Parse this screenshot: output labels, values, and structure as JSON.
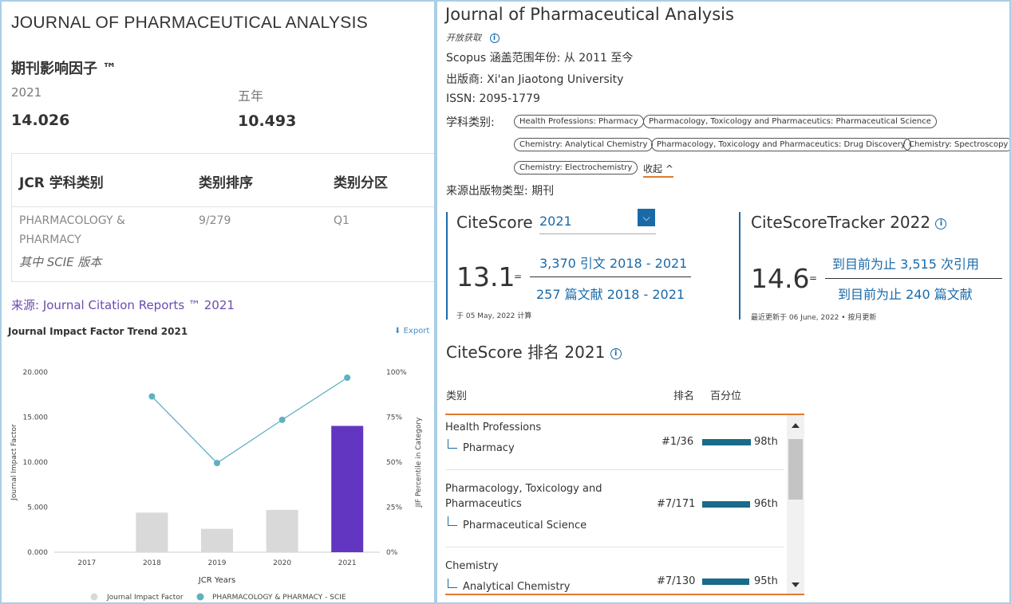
{
  "left": {
    "journal_title": "JOURNAL OF PHARMACEUTICAL ANALYSIS",
    "jif_heading": "期刊影响因子 ™",
    "jif_year_label": "2021",
    "jif_value": "14.026",
    "five_year_label": "五年",
    "five_year_value": "10.493",
    "jcr_table": {
      "headers": [
        "JCR 学科类别",
        "类别排序",
        "类别分区"
      ],
      "category_line1": "PHARMACOLOGY &",
      "category_line2": "PHARMACY",
      "edition": "其中 SCIE 版本",
      "rank": "9/279",
      "quartile": "Q1"
    },
    "source_prefix": "来源: ",
    "source_link": "Journal Citation Reports ™ 2021",
    "trend_title": "Journal Impact Factor Trend 2021",
    "export_label": "Export"
  },
  "chart_data": {
    "type": "bar",
    "title": "Journal Impact Factor Trend 2021",
    "categories": [
      "2017",
      "2018",
      "2019",
      "2020",
      "2021"
    ],
    "xlabel": "JCR Years",
    "ylabel": "Journal Impact Factor",
    "y2label": "JIF Percentile in Category",
    "ylim": [
      0,
      20
    ],
    "y_ticks": [
      "0.000",
      "5.000",
      "10.000",
      "15.000",
      "20.000"
    ],
    "y2_ticks": [
      "0%",
      "25%",
      "50%",
      "75%",
      "100%"
    ],
    "series": [
      {
        "name": "Journal Impact Factor",
        "kind": "bar",
        "values": [
          null,
          4.4,
          2.6,
          4.7,
          14.026
        ],
        "color": "#d9d9d9",
        "highlight_color": "#6236c0"
      },
      {
        "name": "PHARMACOLOGY & PHARMACY - SCIE",
        "kind": "line",
        "axis": "right",
        "values": [
          null,
          86.5,
          49.5,
          73.5,
          96.9
        ],
        "color": "#5fb1c0"
      }
    ],
    "legend": "bottom"
  },
  "right": {
    "title": "Journal of Pharmaceutical Analysis",
    "open_access": "开放获取",
    "scopus_coverage": "Scopus 涵盖范围年份:  从 2011 至今",
    "publisher": "出版商:  Xi'an Jiaotong University",
    "issn": "ISSN:  2095-1779",
    "subject_label": "学科类别:",
    "subject_tags": [
      "Health Professions: Pharmacy",
      "Pharmacology, Toxicology and Pharmaceutics: Pharmaceutical Science",
      "Chemistry: Analytical Chemistry",
      "Pharmacology, Toxicology and Pharmaceutics: Drug Discovery",
      "Chemistry: Spectroscopy",
      "Chemistry: Electrochemistry"
    ],
    "collapse_label": "收起",
    "source_type": "来源出版物类型:  期刊",
    "citescore": {
      "label": "CiteScore",
      "year": "2021",
      "value": "13.1",
      "eq": "=",
      "numerator": "3,370 引文 2018 - 2021",
      "denominator": "257 篇文献 2018 - 2021",
      "calc_date": "于 05 May, 2022 计算"
    },
    "tracker": {
      "label": "CiteScoreTracker 2022",
      "value": "14.6",
      "eq": "=",
      "numerator": "到目前为止 3,515 次引用",
      "denominator": "到目前为止 240 篇文献",
      "updated": "最近更新于 06 June, 2022 • 按月更新"
    },
    "rank_title": "CiteScore 排名 2021",
    "rank_headers": {
      "category": "类别",
      "rank": "排名",
      "percentile": "百分位"
    },
    "rank_rows": [
      {
        "category": "Health Professions",
        "category_line2": "",
        "sub": "Pharmacy",
        "rank": "#1/36",
        "percentile": "98th",
        "pct_value": 98
      },
      {
        "category": "Pharmacology, Toxicology and",
        "category_line2": "Pharmaceutics",
        "sub": "Pharmaceutical Science",
        "rank": "#7/171",
        "percentile": "96th",
        "pct_value": 96
      },
      {
        "category": "Chemistry",
        "category_line2": "",
        "sub": "Analytical Chemistry",
        "rank": "#7/130",
        "percentile": "95th",
        "pct_value": 95
      }
    ]
  }
}
